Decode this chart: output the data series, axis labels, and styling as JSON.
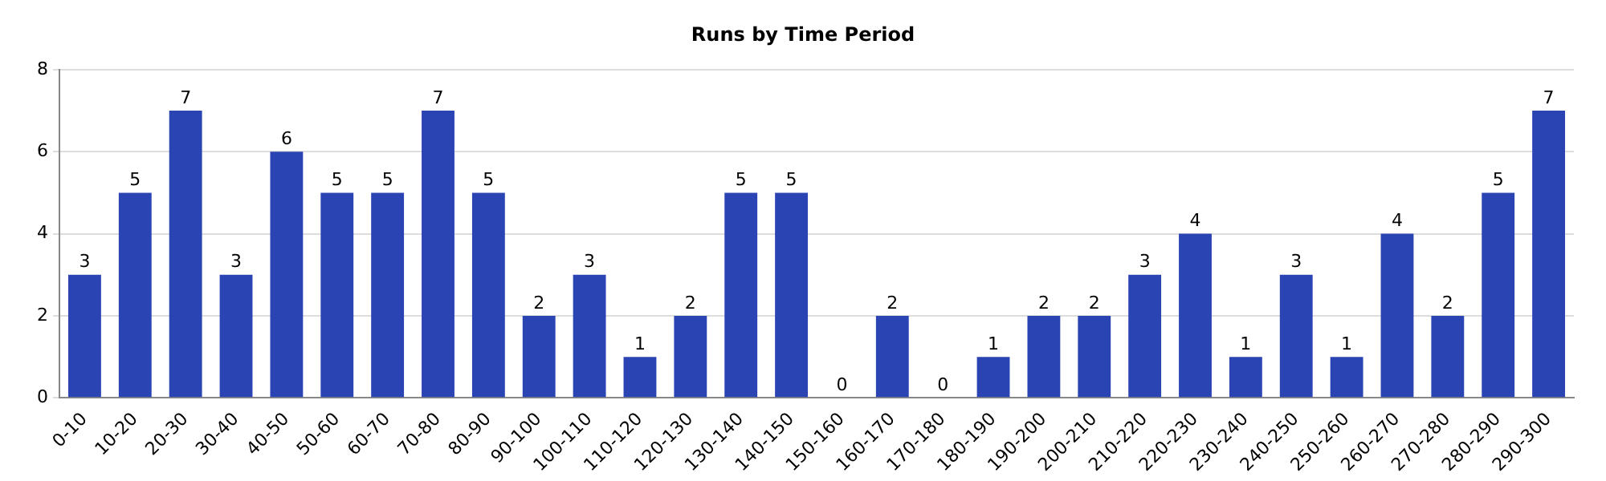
{
  "chart_data": {
    "type": "bar",
    "title": "Runs by Time Period",
    "categories": [
      "0-10",
      "10-20",
      "20-30",
      "30-40",
      "40-50",
      "50-60",
      "60-70",
      "70-80",
      "80-90",
      "90-100",
      "100-110",
      "110-120",
      "120-130",
      "130-140",
      "140-150",
      "150-160",
      "160-170",
      "170-180",
      "180-190",
      "190-200",
      "200-210",
      "210-220",
      "220-230",
      "230-240",
      "240-250",
      "250-260",
      "260-270",
      "270-280",
      "280-290",
      "290-300"
    ],
    "values": [
      3,
      5,
      7,
      3,
      6,
      5,
      5,
      7,
      5,
      2,
      3,
      1,
      2,
      5,
      5,
      0,
      2,
      0,
      1,
      2,
      2,
      3,
      4,
      1,
      3,
      1,
      4,
      2,
      5,
      7
    ],
    "color": "#2b44b4",
    "ylim": [
      0,
      8
    ],
    "yticks": [
      0,
      2,
      4,
      6,
      8
    ],
    "grid": "y",
    "data_labels": true
  }
}
